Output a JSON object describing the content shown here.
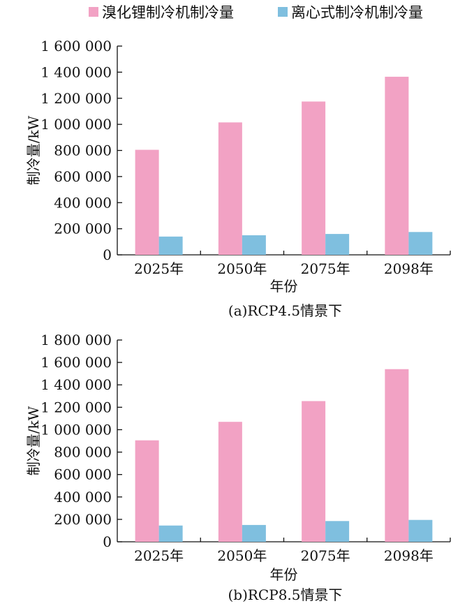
{
  "legend": {
    "items": [
      {
        "label": "溴化锂制冷机制冷量",
        "color": "#f2a2c4"
      },
      {
        "label": "离心式制冷机制冷量",
        "color": "#7fbfdf"
      }
    ]
  },
  "chart_data": [
    {
      "type": "bar",
      "caption": "(a)RCP4.5情景下",
      "xlabel": "年份",
      "ylabel": "制冷量/kW",
      "categories": [
        "2025年",
        "2050年",
        "2075年",
        "2098年"
      ],
      "ylim": [
        0,
        1600000
      ],
      "yticks": [
        0,
        200000,
        400000,
        600000,
        800000,
        1000000,
        1200000,
        1400000,
        1600000
      ],
      "ytick_labels": [
        "0",
        "200 000",
        "400 000",
        "600 000",
        "800 000",
        "1 000 000",
        "1 200 000",
        "1 400 000",
        "1 600 000"
      ],
      "series": [
        {
          "name": "溴化锂制冷机制冷量",
          "values": [
            805000,
            1015000,
            1175000,
            1365000
          ]
        },
        {
          "name": "离心式制冷机制冷量",
          "values": [
            140000,
            150000,
            160000,
            175000
          ]
        }
      ]
    },
    {
      "type": "bar",
      "caption": "(b)RCP8.5情景下",
      "xlabel": "年份",
      "ylabel": "制冷量/kW",
      "categories": [
        "2025年",
        "2050年",
        "2075年",
        "2098年"
      ],
      "ylim": [
        0,
        1800000
      ],
      "yticks": [
        0,
        200000,
        400000,
        600000,
        800000,
        1000000,
        1200000,
        1400000,
        1600000,
        1800000
      ],
      "ytick_labels": [
        "0",
        "200 000",
        "400 000",
        "600 000",
        "800 000",
        "1 000 000",
        "1 200 000",
        "1 400 000",
        "1 600 000",
        "1 800 000"
      ],
      "series": [
        {
          "name": "溴化锂制冷机制冷量",
          "values": [
            905000,
            1070000,
            1255000,
            1540000
          ]
        },
        {
          "name": "离心式制冷机制冷量",
          "values": [
            145000,
            150000,
            185000,
            195000
          ]
        }
      ]
    }
  ]
}
